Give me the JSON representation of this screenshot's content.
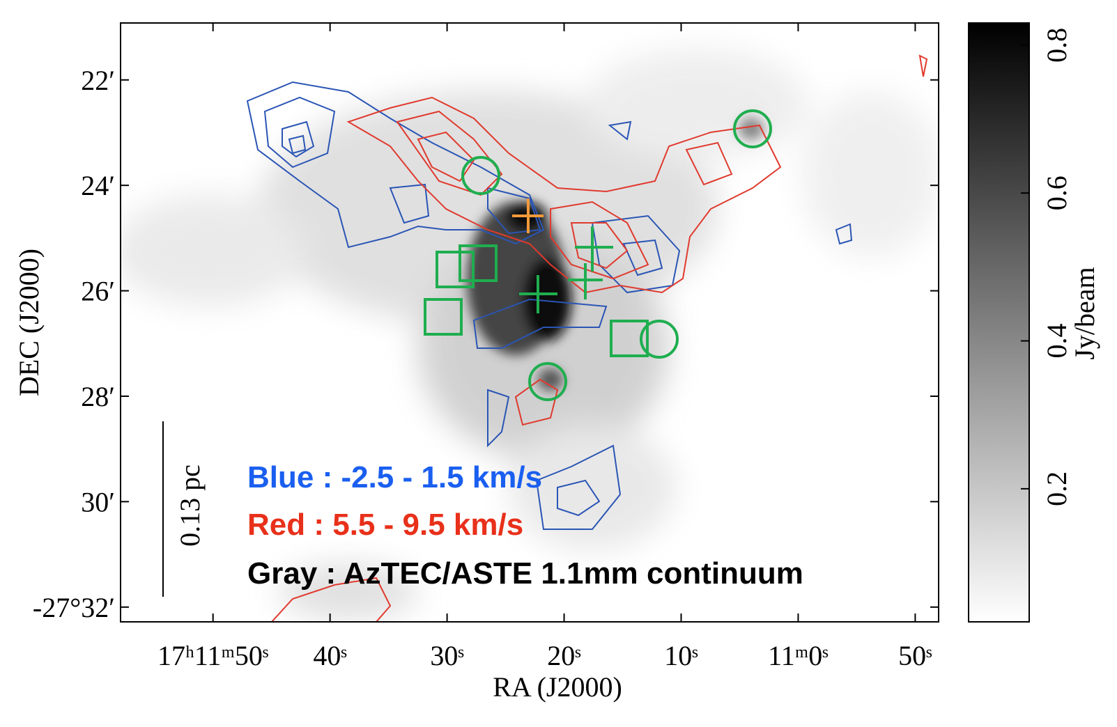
{
  "chart_data": {
    "type": "image",
    "xlabel": "RA (J2000)",
    "ylabel": "DEC (J2000)",
    "xlim": [
      57.9,
      -12.0
    ],
    "xticks": [
      {
        "value": 50,
        "label": "17ʰ11ᵐ50ˢ"
      },
      {
        "value": 40,
        "label": "40ˢ"
      },
      {
        "value": 30,
        "label": "30ˢ"
      },
      {
        "value": 20,
        "label": "20ˢ"
      },
      {
        "value": 10,
        "label": "10ˢ"
      },
      {
        "value": 0,
        "label": "11ᵐ0ˢ"
      },
      {
        "value": -10,
        "label": "50ˢ"
      }
    ],
    "ylim": [
      20.92,
      32.28
    ],
    "yticks": [
      {
        "value": 22,
        "label": "22′"
      },
      {
        "value": 24,
        "label": "24′"
      },
      {
        "value": 26,
        "label": "26′"
      },
      {
        "value": 28,
        "label": "28′"
      },
      {
        "value": 30,
        "label": "30′"
      },
      {
        "value": 32,
        "label": "-27°32′"
      }
    ],
    "colorbar": {
      "label": "Jy/beam",
      "clim": [
        0.02,
        0.83
      ],
      "ticks": [
        0.2,
        0.4,
        0.6,
        0.8
      ]
    },
    "scale_bar": "0.13 pc",
    "annotations": [
      {
        "text": "Blue : -2.5 - 1.5 km/s",
        "color": "#1a5ff0"
      },
      {
        "text": "Red : 5.5 - 9.5 km/s",
        "color": "#e8301a"
      },
      {
        "text": "Gray : AzTEC/ASTE 1.1mm continuum",
        "color": "#000000"
      }
    ]
  }
}
